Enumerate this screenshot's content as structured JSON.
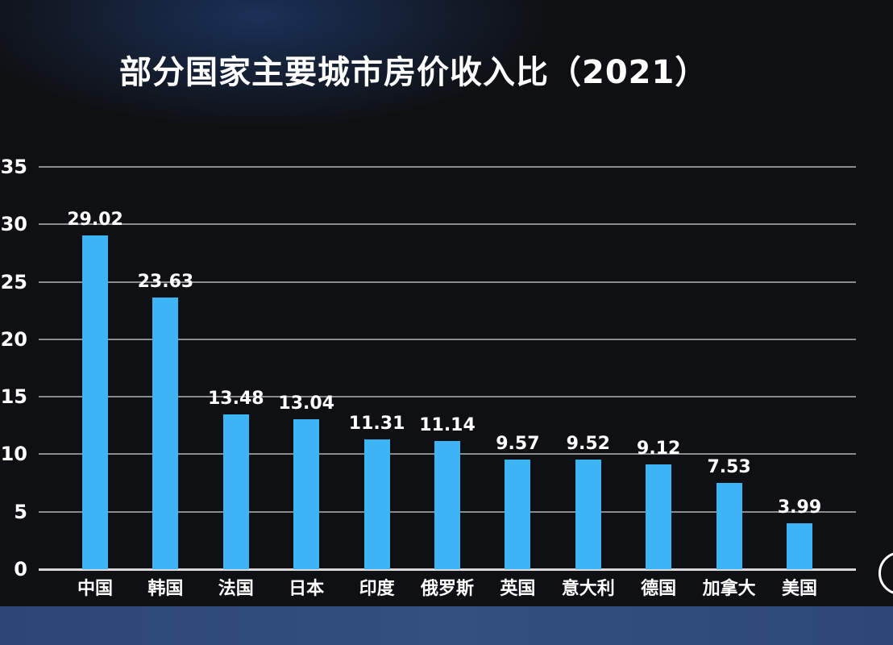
{
  "title": "部分国家主要城市房价收入比（2021）",
  "colors": {
    "background": "#0f1013",
    "bar": "#3db4f6",
    "gridline": "#8a8c90",
    "footer_band": "#2f4a7e",
    "text": "#ffffff"
  },
  "y_axis": {
    "ticks": [
      "0",
      "5",
      "10",
      "15",
      "20",
      "25",
      "30",
      "35"
    ]
  },
  "bars": [
    {
      "category": "中国",
      "value_label": "29.02"
    },
    {
      "category": "韩国",
      "value_label": "23.63"
    },
    {
      "category": "法国",
      "value_label": "13.48"
    },
    {
      "category": "日本",
      "value_label": "13.04"
    },
    {
      "category": "印度",
      "value_label": "11.31"
    },
    {
      "category": "俄罗斯",
      "value_label": "11.14"
    },
    {
      "category": "英国",
      "value_label": "9.57"
    },
    {
      "category": "意大利",
      "value_label": "9.52"
    },
    {
      "category": "德国",
      "value_label": "9.12"
    },
    {
      "category": "加拿大",
      "value_label": "7.53"
    },
    {
      "category": "美国",
      "value_label": "3.99"
    }
  ],
  "chart_data": {
    "type": "bar",
    "title": "部分国家主要城市房价收入比（2021）",
    "xlabel": "",
    "ylabel": "",
    "categories": [
      "中国",
      "韩国",
      "法国",
      "日本",
      "印度",
      "俄罗斯",
      "英国",
      "意大利",
      "德国",
      "加拿大",
      "美国"
    ],
    "values": [
      29.02,
      23.63,
      13.48,
      13.04,
      11.31,
      11.14,
      9.57,
      9.52,
      9.12,
      7.53,
      3.99
    ],
    "ylim": [
      0,
      35
    ],
    "yticks": [
      0,
      5,
      10,
      15,
      20,
      25,
      30,
      35
    ],
    "grid": true,
    "legend": null,
    "data_labels": true
  }
}
